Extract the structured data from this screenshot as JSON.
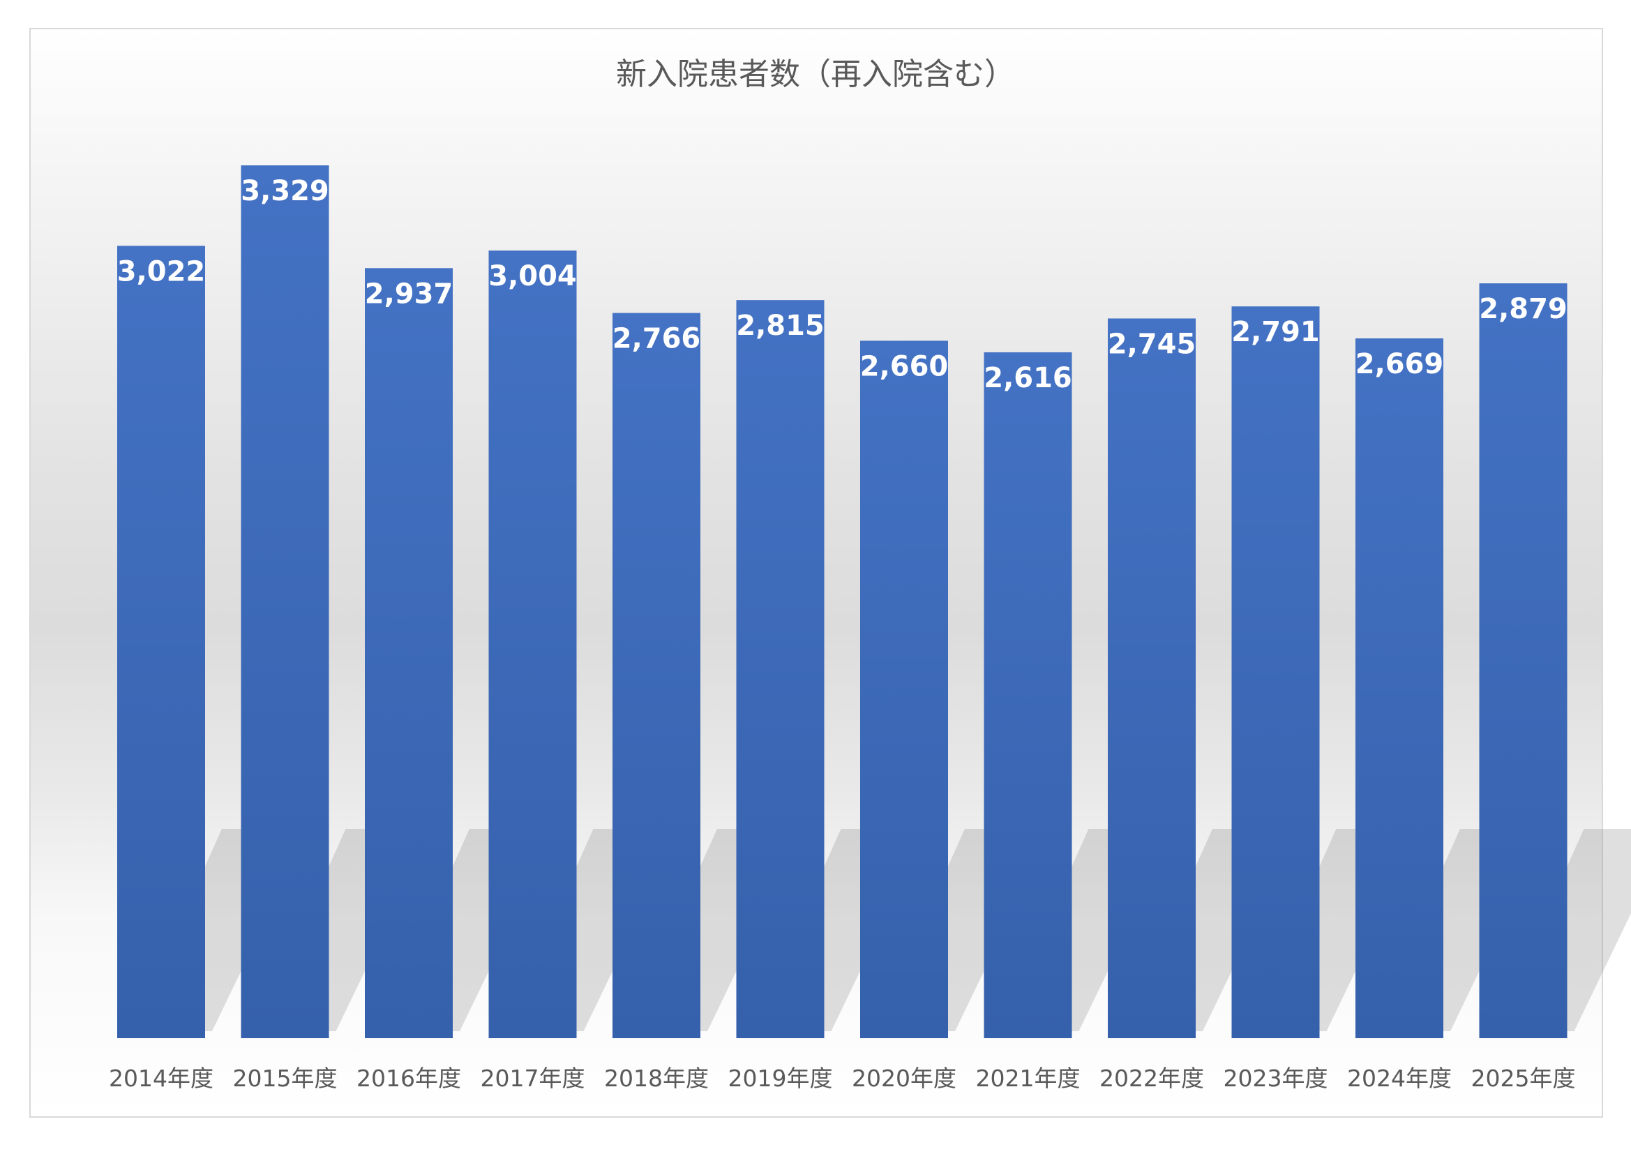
{
  "chart_data": {
    "type": "bar",
    "title": "新入院患者数（再入院含む）",
    "categories": [
      "2014年度",
      "2015年度",
      "2016年度",
      "2017年度",
      "2018年度",
      "2019年度",
      "2020年度",
      "2021年度",
      "2022年度",
      "2023年度",
      "2024年度",
      "2025年度"
    ],
    "values": [
      3022,
      3329,
      2937,
      3004,
      2766,
      2815,
      2660,
      2616,
      2745,
      2791,
      2669,
      2879
    ],
    "data_labels": [
      "3,022",
      "3,329",
      "2,937",
      "3,004",
      "2,766",
      "2,815",
      "2,660",
      "2,616",
      "2,745",
      "2,791",
      "2,669",
      "2,879"
    ],
    "xlabel": "",
    "ylabel": "",
    "ylim": [
      0,
      3500
    ],
    "grid": false,
    "legend": "none",
    "colors": {
      "bar_top": "#4472C4",
      "bar_bottom": "#3560AB",
      "data_label": "#FFFFFF",
      "tick_label": "#595959",
      "title": "#595959"
    }
  }
}
